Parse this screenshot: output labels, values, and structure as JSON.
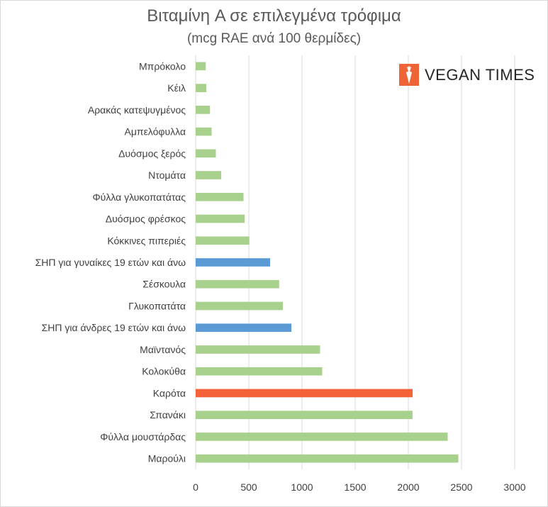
{
  "chart_data": {
    "type": "bar",
    "orientation": "horizontal",
    "title": "Βιταμίνη A σε επιλεγμένα τρόφιμα",
    "subtitle": "(mcg RAE ανά 100 θερμίδες)",
    "categories": [
      "Μπρόκολο",
      "Κέιλ",
      "Αρακάς κατεψυγμένος",
      "Αμπελόφυλλα",
      "Δυόσμος ξερός",
      "Ντομάτα",
      "Φύλλα γλυκοπατάτας",
      "Δυόσμος φρέσκος",
      "Κόκκινες πιπεριές",
      "ΣΗΠ για γυναίκες 19 ετών και άνω",
      "Σέσκουλα",
      "Γλυκοπατάτα",
      "ΣΗΠ για άνδρες 19 ετών και άνω",
      "Μαϊντανός",
      "Κολοκύθα",
      "Καρότα",
      "Σπανάκι",
      "Φύλλα μουστάρδας",
      "Μαρούλι"
    ],
    "values": [
      95,
      100,
      135,
      150,
      190,
      240,
      450,
      460,
      505,
      700,
      785,
      820,
      900,
      1170,
      1190,
      2040,
      2040,
      2370,
      2470
    ],
    "bar_colors": [
      "#a9d18e",
      "#a9d18e",
      "#a9d18e",
      "#a9d18e",
      "#a9d18e",
      "#a9d18e",
      "#a9d18e",
      "#a9d18e",
      "#a9d18e",
      "#5b9bd5",
      "#a9d18e",
      "#a9d18e",
      "#5b9bd5",
      "#a9d18e",
      "#a9d18e",
      "#f4623a",
      "#a9d18e",
      "#a9d18e",
      "#a9d18e"
    ],
    "xlim": [
      0,
      3000
    ],
    "xticks": [
      "0",
      "500",
      "1000",
      "1500",
      "2000",
      "2500",
      "3000"
    ],
    "grid": "vertical",
    "legend": "none"
  },
  "logo": {
    "text": "VEGAN TIMES",
    "icon": "carrot-icon",
    "color": "#ef6437"
  },
  "colors": {
    "gridline": "#d9d9d9",
    "text": "#404040",
    "title": "#595959"
  }
}
